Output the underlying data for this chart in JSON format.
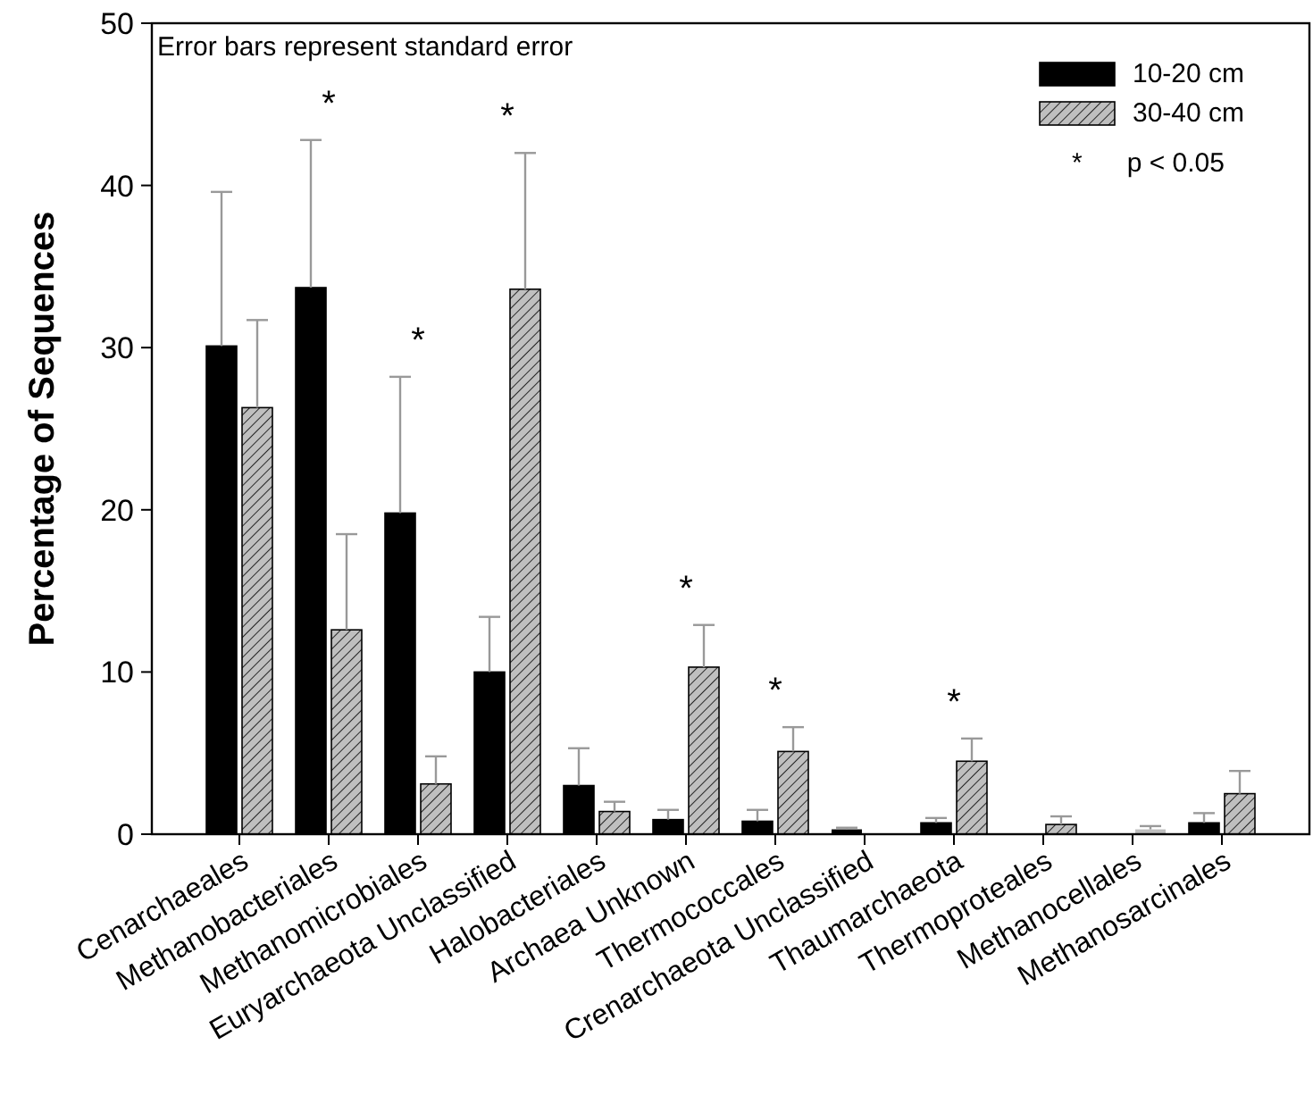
{
  "chart_data": {
    "type": "bar",
    "ylabel": "Percentage of Sequences",
    "categories": [
      "Cenarchaeales",
      "Methanobacteriales",
      "Methanomicrobiales",
      "Euryarchaeota Unclassified",
      "Halobacteriales",
      "Archaea Unknown",
      "Thermococcales",
      "Crenarchaeota Unclassified",
      "Thaumarchaeota",
      "Thermoproteales",
      "Methanocellales",
      "Methanosarcinales"
    ],
    "series": [
      {
        "name": "10-20 cm",
        "color": "#000000",
        "values": [
          30.1,
          33.7,
          19.8,
          10.0,
          3.0,
          0.9,
          0.8,
          0.3,
          0.7,
          0,
          0,
          0.7
        ],
        "errors": [
          [
            30.1,
            39.6
          ],
          [
            33.7,
            42.8
          ],
          [
            19.8,
            28.2
          ],
          [
            10.0,
            13.4
          ],
          [
            3.0,
            5.3
          ],
          [
            0.9,
            1.5
          ],
          [
            0.8,
            1.5
          ],
          [
            0.3,
            0.4
          ],
          [
            0.7,
            1.0
          ],
          null,
          null,
          [
            0.7,
            1.3
          ]
        ]
      },
      {
        "name": "30-40 cm",
        "color": "#bfbfbf",
        "values": [
          26.3,
          12.6,
          3.1,
          33.6,
          1.4,
          10.3,
          5.1,
          0,
          4.5,
          0.6,
          0.3,
          2.5
        ],
        "errors": [
          [
            26.3,
            31.7
          ],
          [
            12.6,
            18.5
          ],
          [
            3.1,
            4.8
          ],
          [
            33.6,
            42.0
          ],
          [
            1.4,
            2.0
          ],
          [
            10.3,
            12.9
          ],
          [
            5.1,
            6.6
          ],
          null,
          [
            4.5,
            5.9
          ],
          [
            0.6,
            1.1
          ],
          [
            0.3,
            0.5
          ],
          [
            2.5,
            3.9
          ]
        ]
      }
    ],
    "ylim": [
      0,
      50
    ],
    "yticks": [
      0,
      10,
      20,
      30,
      40,
      50
    ],
    "grid": false,
    "legend": "top right",
    "annotations": [
      "Error bars represent standard error",
      "*      p < 0.05",
      {
        "text": "*",
        "x": "Methanobacteriales",
        "y": 42.8
      },
      {
        "text": "*",
        "x": "Methanomicrobiales",
        "y": 28.2
      },
      {
        "text": "*",
        "x": "Euryarchaeota Unclassified",
        "y": 42.0
      },
      {
        "text": "*",
        "x": "Archaea Unknown",
        "y": 12.9
      },
      {
        "text": "*",
        "x": "Thermococcales",
        "y": 6.6
      },
      {
        "text": "*",
        "x": "Thaumarchaeota",
        "y": 5.9
      }
    ]
  }
}
